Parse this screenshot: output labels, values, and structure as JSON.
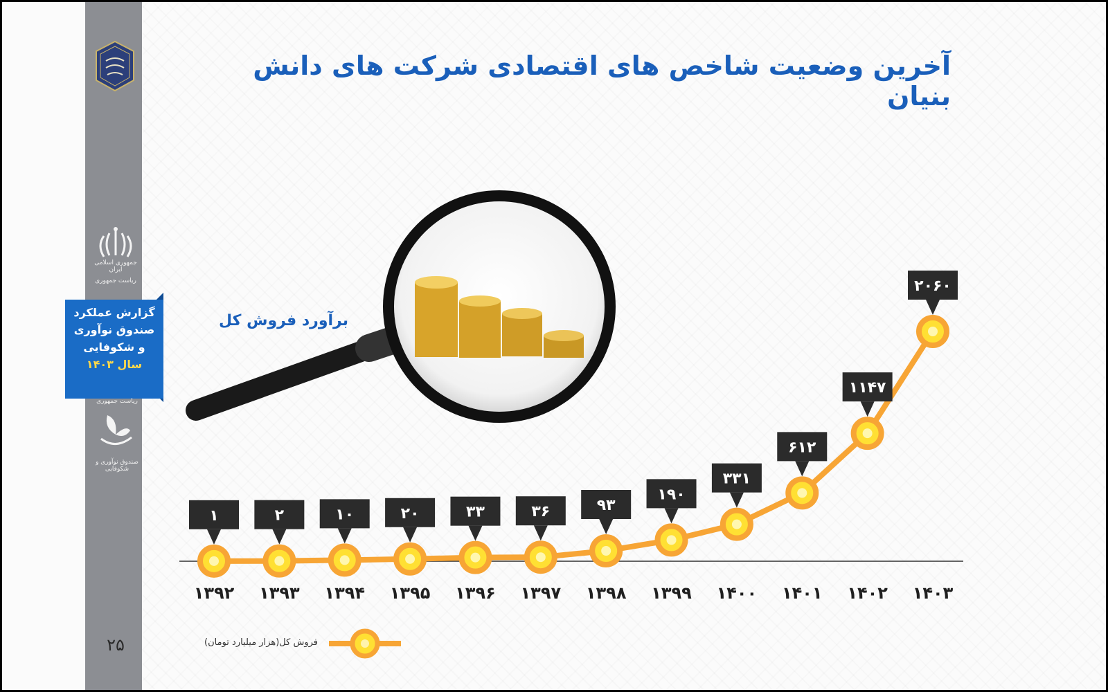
{
  "title": "آخرین وضعیت شاخص های اقتصادی شرکت های دانش بنیان",
  "subtitle": "برآورد فروش کل",
  "page_number": "۲۵",
  "sidebar": {
    "gov_caption_1": "جمهوری اسلامی ایران",
    "gov_caption_2": "ریاست جمهوری",
    "report": {
      "line1": "گزارش عملکرد",
      "line2": "صندوق نوآوری",
      "line3": "و شکوفایی",
      "line4": "سال ۱۴۰۳"
    },
    "fund_caption_1": "ریاست جمهوری",
    "fund_caption_2": "صندوق نوآوری و شکوفایی"
  },
  "colors": {
    "line": "#f7a535",
    "marker_fill": "#ffe033",
    "marker_ring": "#f7a535",
    "label_box": "#2b2b2b",
    "title": "#1a5fba",
    "sidebar": "#8c8e93",
    "badge": "#1a6cc6"
  },
  "icons": {
    "magnifier": "magnifier-with-coins",
    "emblem": "scroll-emblem",
    "gov": "iran-emblem",
    "fund": "fund-leaf-logo"
  },
  "chart_data": {
    "type": "line",
    "categories": [
      "۱۳۹۲",
      "۱۳۹۳",
      "۱۳۹۴",
      "۱۳۹۵",
      "۱۳۹۶",
      "۱۳۹۷",
      "۱۳۹۸",
      "۱۳۹۹",
      "۱۴۰۰",
      "۱۴۰۱",
      "۱۴۰۲",
      "۱۴۰۳"
    ],
    "values": [
      1,
      2,
      10,
      20,
      33,
      36,
      93,
      190,
      331,
      612,
      1147,
      2060
    ],
    "value_labels": [
      "۱",
      "۲",
      "۱۰",
      "۲۰",
      "۳۳",
      "۳۶",
      "۹۳",
      "۱۹۰",
      "۳۳۱",
      "۶۱۲",
      "۱۱۴۷",
      "۲۰۶۰"
    ],
    "series": [
      {
        "name": "فروش کل(هزار میلیارد تومان)",
        "values": [
          1,
          2,
          10,
          20,
          33,
          36,
          93,
          190,
          331,
          612,
          1147,
          2060
        ]
      }
    ],
    "legend_position": "bottom-left",
    "grid": false
  }
}
